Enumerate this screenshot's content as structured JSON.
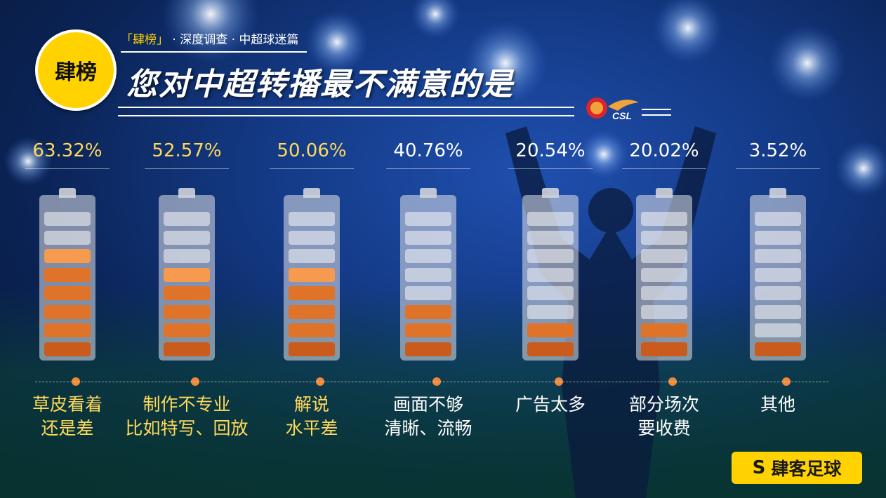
{
  "header": {
    "badge": "肆榜",
    "subtitle_highlight": "「肆榜」",
    "subtitle_rest": "· 深度调查 · 中超球迷篇",
    "title": "您对中超转播最不满意的是",
    "logo_text": "CSL"
  },
  "footer": {
    "brand": "肆客足球"
  },
  "colors": {
    "accent_yellow": "#ffd200",
    "segment_orange": "#e0732a",
    "percent_highlight": "#ffd95a",
    "background_blue": "#143a86"
  },
  "chart_data": {
    "type": "bar",
    "title": "您对中超转播最不满意的是",
    "categories": [
      [
        "草皮看着",
        "还是差"
      ],
      [
        "制作不专业",
        "比如特写、回放"
      ],
      [
        "解说",
        "水平差"
      ],
      [
        "画面不够",
        "清晰、流畅"
      ],
      [
        "广告太多"
      ],
      [
        "部分场次",
        "要收费"
      ],
      [
        "其他"
      ]
    ],
    "values": [
      63.32,
      52.57,
      50.06,
      40.76,
      20.54,
      20.02,
      3.52
    ],
    "value_labels": [
      "63.32%",
      "52.57%",
      "50.06%",
      "40.76%",
      "20.54%",
      "20.02%",
      "3.52%"
    ],
    "filled_segments": [
      6,
      5,
      5,
      3,
      2,
      2,
      1
    ],
    "total_segments": 8,
    "ylim": [
      0,
      100
    ],
    "unit": "%"
  }
}
